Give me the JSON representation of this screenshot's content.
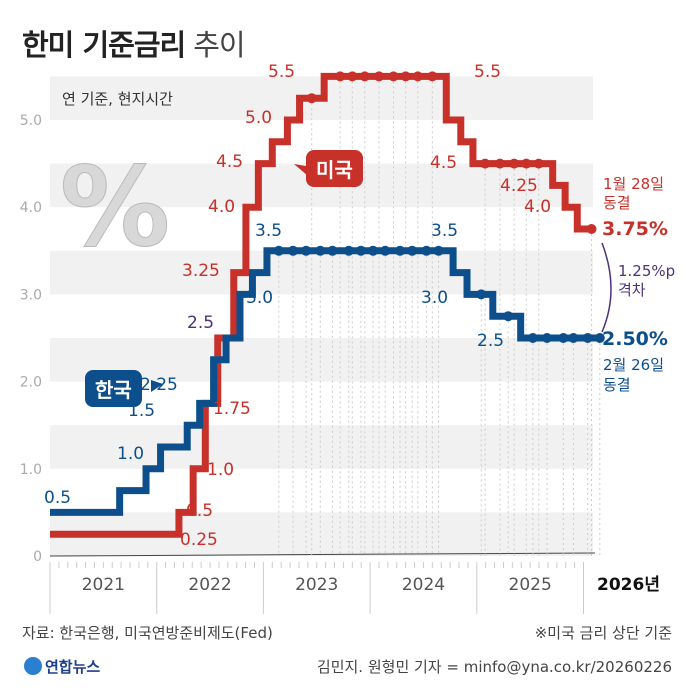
{
  "title": {
    "bold": "한미 기준금리",
    "light": "추이"
  },
  "note": "연 기준, 현지시간",
  "badges": {
    "us": "미국",
    "kr": "한국"
  },
  "colors": {
    "us": "#c8302a",
    "kr": "#0c4f8c",
    "gap": "#4b3378"
  },
  "chart_data": {
    "type": "line",
    "step": true,
    "ylim": [
      0,
      5.5
    ],
    "yticks": [
      "0",
      "1.0",
      "2.0",
      "3.0",
      "4.0",
      "5.0"
    ],
    "yticks_values": [
      0,
      1,
      2,
      3,
      4,
      5
    ],
    "xticks": [
      "2021",
      "2022",
      "2023",
      "2024",
      "2025",
      "2026년"
    ],
    "grid": "alternating horizontal bands",
    "series": [
      {
        "name": "미국",
        "changes": [
          [
            "2021-01-01",
            0.25
          ],
          [
            "2022-03-16",
            0.5
          ],
          [
            "2022-05-04",
            1.0
          ],
          [
            "2022-06-15",
            1.75
          ],
          [
            "2022-07-27",
            2.5
          ],
          [
            "2022-09-21",
            3.25
          ],
          [
            "2022-11-02",
            4.0
          ],
          [
            "2022-12-14",
            4.5
          ],
          [
            "2023-02-01",
            4.75
          ],
          [
            "2023-03-22",
            5.0
          ],
          [
            "2023-05-03",
            5.25
          ],
          [
            "2023-07-26",
            5.5
          ],
          [
            "2024-09-18",
            5.0
          ],
          [
            "2024-11-07",
            4.75
          ],
          [
            "2024-12-18",
            4.5
          ],
          [
            "2025-09-17",
            4.25
          ],
          [
            "2025-10-29",
            4.0
          ],
          [
            "2025-12-10",
            3.75
          ],
          [
            "2026-01-28",
            3.75
          ]
        ],
        "holds": [
          "2023-06-14",
          "2023-09-20",
          "2023-11-01",
          "2023-12-13",
          "2024-01-31",
          "2024-03-20",
          "2024-05-01",
          "2024-06-12",
          "2024-07-31",
          "2025-01-29",
          "2025-03-19",
          "2025-05-07",
          "2025-06-18",
          "2025-07-30",
          "2026-01-28"
        ],
        "labels": [
          "0.25",
          "0.5",
          "1.0",
          "1.75",
          "3.25",
          "4.0",
          "4.5",
          "5.0",
          "5.5",
          "5.5",
          "4.5",
          "4.25",
          "4.0"
        ]
      },
      {
        "name": "한국",
        "changes": [
          [
            "2021-01-01",
            0.5
          ],
          [
            "2021-08-26",
            0.75
          ],
          [
            "2021-11-25",
            1.0
          ],
          [
            "2022-01-14",
            1.25
          ],
          [
            "2022-04-14",
            1.5
          ],
          [
            "2022-05-26",
            1.75
          ],
          [
            "2022-07-13",
            2.25
          ],
          [
            "2022-08-25",
            2.5
          ],
          [
            "2022-10-12",
            3.0
          ],
          [
            "2022-11-24",
            3.25
          ],
          [
            "2023-01-13",
            3.5
          ],
          [
            "2024-10-11",
            3.25
          ],
          [
            "2024-11-28",
            3.0
          ],
          [
            "2025-02-25",
            2.75
          ],
          [
            "2025-05-29",
            2.5
          ],
          [
            "2026-02-26",
            2.5
          ]
        ],
        "holds": [
          "2023-02-23",
          "2023-04-11",
          "2023-05-25",
          "2023-07-13",
          "2023-08-24",
          "2023-10-19",
          "2023-11-30",
          "2024-01-11",
          "2024-02-22",
          "2024-04-12",
          "2024-05-23",
          "2024-07-11",
          "2024-08-22",
          "2025-01-16",
          "2025-04-17",
          "2025-07-10",
          "2025-08-28",
          "2025-10-23",
          "2025-11-27",
          "2026-01-15",
          "2026-02-26"
        ],
        "labels": [
          "0.5",
          "1.0",
          "1.5",
          "2.25",
          "2.5",
          "3.0",
          "3.5",
          "3.5",
          "3.0",
          "2.5"
        ]
      }
    ],
    "annotations": {
      "us_final": "3.75%",
      "us_date": "1월 28일",
      "us_status": "동결",
      "kr_final": "2.50%",
      "kr_date": "2월 26일",
      "kr_status": "동결",
      "gap": "1.25%p",
      "gap_label": "격차"
    }
  },
  "footer": {
    "source": "자료: 한국은행, 미국연방준비제도(Fed)",
    "basis": "※미국 금리 상단 기준",
    "logo": "연합뉴스",
    "credit": "김민지. 원형민 기자 = minfo@yna.co.kr/20260226"
  }
}
